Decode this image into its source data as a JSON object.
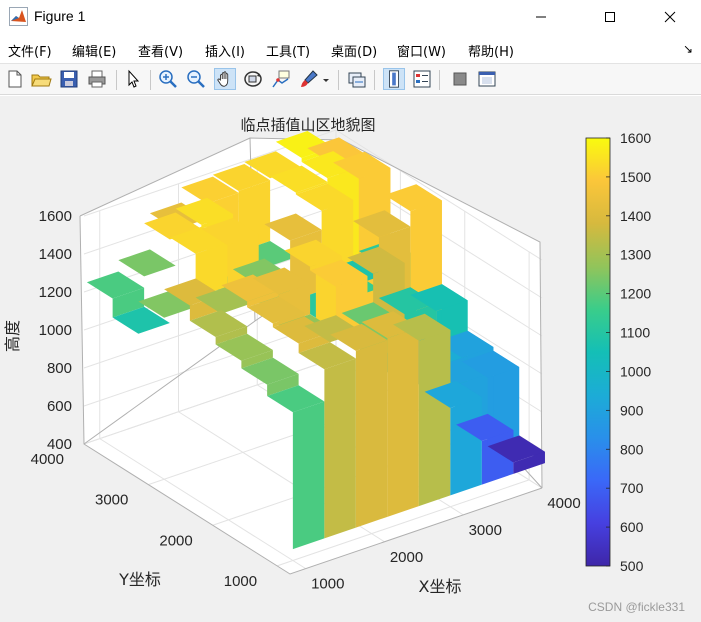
{
  "window": {
    "title": "Figure 1",
    "minimize_icon": "minimize-icon",
    "maximize_icon": "maximize-icon",
    "close_icon": "close-icon"
  },
  "menu": {
    "items": [
      {
        "label": "文件(F)"
      },
      {
        "label": "编辑(E)"
      },
      {
        "label": "查看(V)"
      },
      {
        "label": "插入(I)"
      },
      {
        "label": "工具(T)"
      },
      {
        "label": "桌面(D)"
      },
      {
        "label": "窗口(W)"
      },
      {
        "label": "帮助(H)"
      }
    ],
    "dock_arrow": "↘"
  },
  "toolbar": {
    "icons": [
      "new-file-icon",
      "open-folder-icon",
      "save-icon",
      "print-icon",
      "pointer-icon",
      "zoom-in-icon",
      "zoom-out-icon",
      "pan-icon",
      "rotate-3d-icon",
      "data-cursor-icon",
      "brush-icon",
      "link-plot-icon",
      "colorbar-icon",
      "legend-icon",
      "hide-plot-tools-icon",
      "show-plot-tools-icon"
    ]
  },
  "plot": {
    "title": "临点插值山区地貌图",
    "xlabel": "X坐标",
    "ylabel": "Y坐标",
    "zlabel": "高度"
  },
  "chart_data": {
    "type": "surface3d",
    "title": "临点插值山区地貌图",
    "xlabel": "X坐标",
    "ylabel": "Y坐标",
    "zlabel": "高度",
    "x_ticks": [
      "1000",
      "2000",
      "3000",
      "4000"
    ],
    "y_ticks": [
      "1000",
      "2000",
      "3000",
      "4000"
    ],
    "z_ticks": [
      "400",
      "600",
      "800",
      "1000",
      "1200",
      "1400",
      "1600"
    ],
    "xlim": [
      800,
      4000
    ],
    "ylim": [
      800,
      4000
    ],
    "zlim": [
      400,
      1600
    ],
    "grid": true,
    "colormap": "parula",
    "colorbar": {
      "ticks": [
        "500",
        "600",
        "700",
        "800",
        "900",
        "1000",
        "1100",
        "1200",
        "1300",
        "1400",
        "1500",
        "1600"
      ],
      "range": [
        500,
        1600
      ]
    },
    "x": [
      1200,
      1600,
      2000,
      2400,
      2800,
      3200,
      3600,
      4000
    ],
    "y": [
      1200,
      1600,
      2000,
      2400,
      2800,
      3200,
      3600,
      4000
    ],
    "z": [
      [
        1180,
        1350,
        1390,
        1400,
        1330,
        920,
        690,
        520
      ],
      [
        1240,
        1400,
        1350,
        1250,
        1060,
        940,
        900,
        880
      ],
      [
        1280,
        1420,
        1270,
        1500,
        1220,
        960,
        940,
        900
      ],
      [
        1320,
        1450,
        1430,
        1520,
        1080,
        1370,
        1100,
        1060
      ],
      [
        1400,
        1300,
        1290,
        1160,
        1110,
        1150,
        1420,
        1500
      ],
      [
        1250,
        1530,
        1520,
        1250,
        1430,
        1530,
        1080,
        1120
      ],
      [
        1080,
        1520,
        1540,
        1090,
        1200,
        1540,
        1560,
        1500
      ],
      [
        1180,
        1240,
        1430,
        1510,
        1520,
        1530,
        1580,
        1490
      ]
    ]
  },
  "watermark": "CSDN @fickle331"
}
